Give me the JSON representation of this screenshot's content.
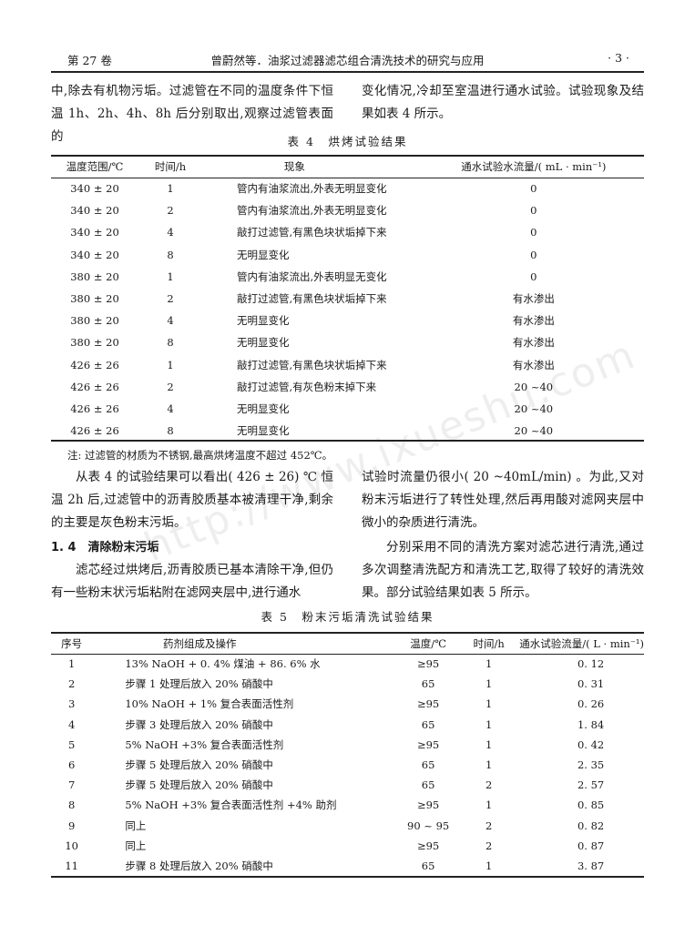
{
  "header": {
    "volume": "第 27 卷",
    "running_title": "曾蔚然等．油浆过滤器滤芯组合清洗技术的研究与应用",
    "page": "· 3 ·"
  },
  "intro": {
    "left": "中,除去有机物污垢。过滤管在不同的温度条件下恒温 1h、2h、4h、8h 后分别取出,观察过滤管表面的",
    "right": "变化情况,冷却至室温进行通水试验。试验现象及结果如表 4 所示。"
  },
  "table4": {
    "caption": "表 4　烘烤试验结果",
    "headers": [
      "温度范围/℃",
      "时间/h",
      "现象",
      "通水试验水流量/( mL · min⁻¹)"
    ],
    "rows": [
      [
        "340 ± 20",
        "1",
        "管内有油浆流出,外表无明显变化",
        "0"
      ],
      [
        "340 ± 20",
        "2",
        "管内有油浆流出,外表无明显变化",
        "0"
      ],
      [
        "340 ± 20",
        "4",
        "敲打过滤管,有黑色块状垢掉下来",
        "0"
      ],
      [
        "340 ± 20",
        "8",
        "无明显变化",
        "0"
      ],
      [
        "380 ± 20",
        "1",
        "管内有油浆流出,外表明显无变化",
        "0"
      ],
      [
        "380 ± 20",
        "2",
        "敲打过滤管,有黑色块状垢掉下来",
        "有水渗出"
      ],
      [
        "380 ± 20",
        "4",
        "无明显变化",
        "有水渗出"
      ],
      [
        "380 ± 20",
        "8",
        "无明显变化",
        "有水渗出"
      ],
      [
        "426 ± 26",
        "1",
        "敲打过滤管,有黑色块状垢掉下来",
        "有水渗出"
      ],
      [
        "426 ± 26",
        "2",
        "敲打过滤管,有灰色粉末掉下来",
        "20 ~40"
      ],
      [
        "426 ± 26",
        "4",
        "无明显变化",
        "20 ~40"
      ],
      [
        "426 ± 26",
        "8",
        "无明显变化",
        "20 ~40"
      ]
    ],
    "note": "注: 过滤管的材质为不锈钢,最高烘烤温度不超过 452℃。"
  },
  "body": {
    "left_p1": "从表 4 的试验结果可以看出( 426 ± 26) ℃ 恒温 2h 后,过滤管中的沥青胶质基本被清理干净,剩余的主要是灰色粉末污垢。",
    "section_heading": "1. 4　清除粉末污垢",
    "left_p2": "滤芯经过烘烤后,沥青胶质已基本清除干净,但仍有一些粉末状污垢粘附在滤网夹层中,进行通水",
    "right_p1": "试验时流量仍很小( 20 ~40mL/min) 。为此,又对粉末污垢进行了转性处理,然后再用酸对滤网夹层中微小的杂质进行清洗。",
    "right_p2": "分别采用不同的清洗方案对滤芯进行清洗,通过多次调整清洗配方和清洗工艺,取得了较好的清洗效果。部分试验结果如表 5 所示。"
  },
  "table5": {
    "caption": "表 5　粉末污垢清洗试验结果",
    "headers": [
      "序号",
      "药剂组成及操作",
      "温度/℃",
      "时间/h",
      "通水试验流量/( L · min⁻¹)"
    ],
    "rows": [
      [
        "1",
        "13% NaOH + 0. 4% 煤油 + 86. 6% 水",
        "≥95",
        "1",
        "0. 12"
      ],
      [
        "2",
        "步骤 1 处理后放入 20% 硝酸中",
        "65",
        "1",
        "0. 31"
      ],
      [
        "3",
        "10% NaOH + 1% 复合表面活性剂",
        "≥95",
        "1",
        "0. 26"
      ],
      [
        "4",
        "步骤 3 处理后放入 20% 硝酸中",
        "65",
        "1",
        "1. 84"
      ],
      [
        "5",
        "5% NaOH +3% 复合表面活性剂",
        "≥95",
        "1",
        "0. 42"
      ],
      [
        "6",
        "步骤 5 处理后放入 20% 硝酸中",
        "65",
        "1",
        "2. 35"
      ],
      [
        "7",
        "步骤 5 处理后放入 20% 硝酸中",
        "65",
        "2",
        "2. 57"
      ],
      [
        "8",
        "5% NaOH +3% 复合表面活性剂 +4% 助剂",
        "≥95",
        "1",
        "0. 85"
      ],
      [
        "9",
        "同上",
        "90 ~ 95",
        "2",
        "0. 82"
      ],
      [
        "10",
        "同上",
        "≥95",
        "2",
        "0. 87"
      ],
      [
        "11",
        "步骤 8 处理后放入 20% 硝酸中",
        "65",
        "1",
        "3. 87"
      ]
    ]
  },
  "watermark": "http://www.ixueshu.com"
}
